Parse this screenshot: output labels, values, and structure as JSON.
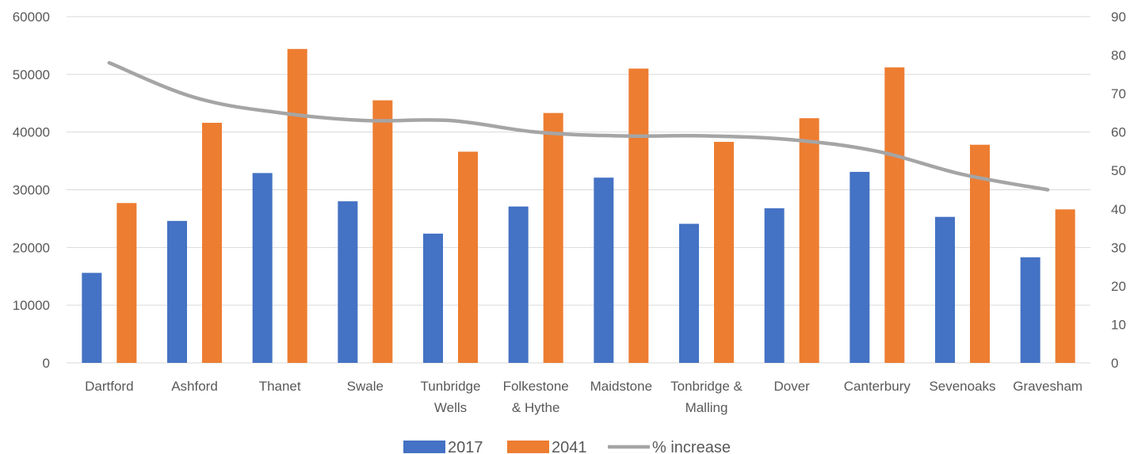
{
  "chart_data": {
    "type": "bar",
    "categories": [
      [
        "Dartford"
      ],
      [
        "Ashford"
      ],
      [
        "Thanet"
      ],
      [
        "Swale"
      ],
      [
        "Tunbridge",
        "Wells"
      ],
      [
        "Folkestone",
        "& Hythe"
      ],
      [
        "Maidstone"
      ],
      [
        "Tonbridge &",
        "Malling"
      ],
      [
        "Dover"
      ],
      [
        "Canterbury"
      ],
      [
        "Sevenoaks"
      ],
      [
        "Gravesham"
      ]
    ],
    "series": [
      {
        "name": "2017",
        "type": "bar",
        "axis": "left",
        "color": "#4472C4",
        "values": [
          15600,
          24600,
          32900,
          28000,
          22400,
          27100,
          32100,
          24100,
          26800,
          33100,
          25300,
          18300
        ]
      },
      {
        "name": "2041",
        "type": "bar",
        "axis": "left",
        "color": "#ED7D31",
        "values": [
          27700,
          41600,
          54400,
          45500,
          36600,
          43300,
          51000,
          38300,
          42400,
          51200,
          37800,
          26600
        ]
      },
      {
        "name": "% increase",
        "type": "line",
        "axis": "right",
        "color": "#A5A5A5",
        "values": [
          78,
          69,
          65,
          63,
          63,
          60,
          59,
          59,
          58,
          55,
          49,
          45
        ]
      }
    ],
    "y_left": {
      "min": 0,
      "max": 60000,
      "ticks": [
        "0",
        "10000",
        "20000",
        "30000",
        "40000",
        "50000",
        "60000"
      ]
    },
    "y_right": {
      "min": 0,
      "max": 90,
      "ticks": [
        "0",
        "10",
        "20",
        "30",
        "40",
        "50",
        "60",
        "70",
        "80",
        "90"
      ]
    },
    "grid": true,
    "legend": "bottom"
  }
}
